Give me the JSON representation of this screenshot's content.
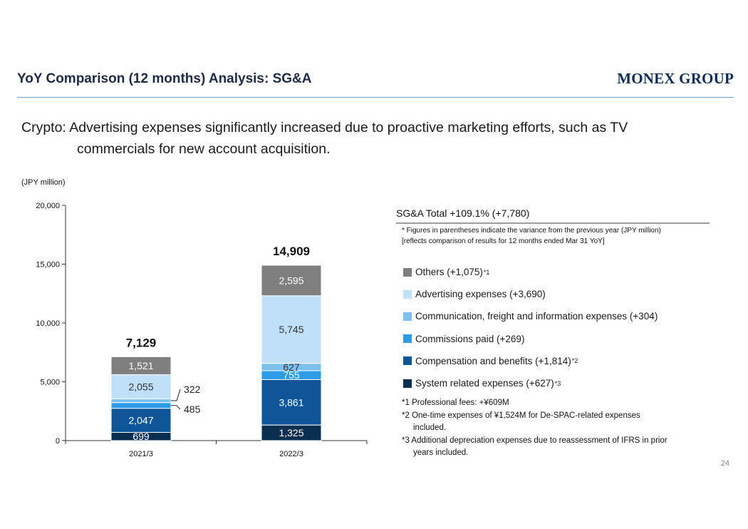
{
  "header": {
    "title": "YoY Comparison (12 months) Analysis: SG&A",
    "brand": "MONEX GROUP"
  },
  "headline": {
    "line1": "Crypto: Advertising expenses significantly increased due to proactive marketing efforts, such as TV",
    "line2": "commercials for new account acquisition."
  },
  "chart_unit": "(JPY million)",
  "legend": {
    "title": "SG&A Total +109.1% (+7,780)",
    "note1": "* Figures in parentheses indicate the variance from the previous year (JPY million)",
    "note2": "[reflects comparison of results for 12 months ended Mar 31 YoY]",
    "items": [
      {
        "label": "Others (+1,075)",
        "sup": "*1",
        "color": "#7f7f7f"
      },
      {
        "label": "Advertising expenses (+3,690)",
        "sup": "",
        "color": "#bfe0f8"
      },
      {
        "label": "Communication, freight and information expenses (+304)",
        "sup": "",
        "color": "#7cc0ee"
      },
      {
        "label": "Commissions paid (+269)",
        "sup": "",
        "color": "#2e9be6"
      },
      {
        "label": "Compensation and benefits (+1,814)",
        "sup": "*2",
        "color": "#0e5699"
      },
      {
        "label": "System related expenses (+627)",
        "sup": "*3",
        "color": "#0a2d52"
      }
    ]
  },
  "footnotes": {
    "f1": "*1 Professional fees: +¥609M",
    "f2a": "*2 One-time expenses of ¥1,524M for De-SPAC-related expenses",
    "f2b": "included.",
    "f3a": "*3 Additional depreciation expenses due to reassessment of IFRS in prior",
    "f3b": "years included."
  },
  "page_number": "24",
  "chart_data": {
    "type": "bar",
    "stacked": true,
    "categories": [
      "2021/3",
      "2022/3"
    ],
    "totals": [
      "7,129",
      "14,909"
    ],
    "ylim": [
      0,
      20000
    ],
    "yticks": [
      0,
      5000,
      10000,
      15000,
      20000
    ],
    "ytick_labels": [
      "0",
      "5,000",
      "10,000",
      "15,000",
      "20,000"
    ],
    "series": [
      {
        "values": [
          699,
          1325
        ],
        "labels": [
          "699",
          "1,325"
        ],
        "color": "#0a2d52",
        "label_color": "#ffffff"
      },
      {
        "values": [
          2047,
          3861
        ],
        "labels": [
          "2,047",
          "3,861"
        ],
        "color": "#0e5699",
        "label_color": "#ffffff"
      },
      {
        "values": [
          485,
          755
        ],
        "labels": [
          "485",
          "755"
        ],
        "color": "#2e9be6",
        "label_color": "#ffffff"
      },
      {
        "values": [
          322,
          627
        ],
        "labels": [
          "322",
          "627"
        ],
        "color": "#7cc0ee",
        "label_color": "#333333"
      },
      {
        "values": [
          2055,
          5745
        ],
        "labels": [
          "2,055",
          "5,745"
        ],
        "color": "#bfe0f8",
        "label_color": "#333333"
      },
      {
        "values": [
          1521,
          2595
        ],
        "labels": [
          "1,521",
          "2,595"
        ],
        "color": "#7f7f7f",
        "label_color": "#ffffff"
      }
    ],
    "grid": false
  }
}
